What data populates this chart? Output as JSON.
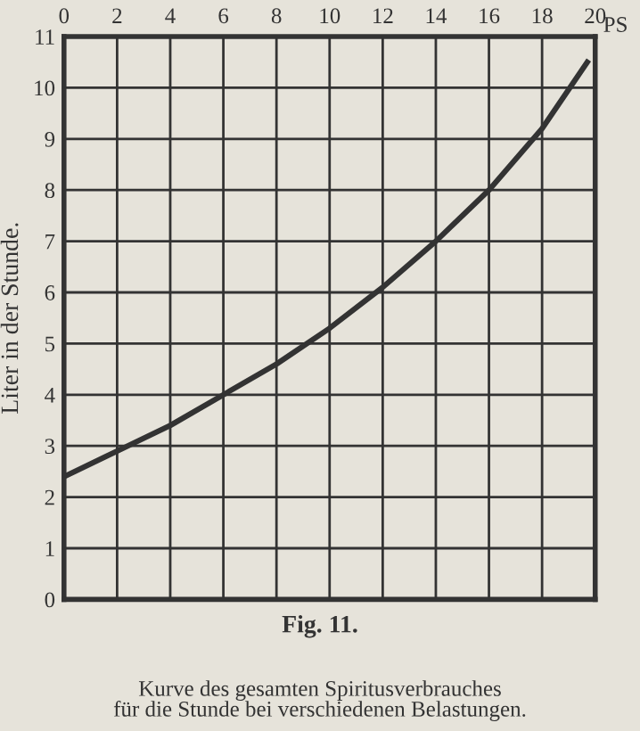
{
  "chart_data": {
    "type": "line",
    "title": "Fig. 11.",
    "subtitle": "Kurve des gesamten Spiritusverbrauches\nfür die Stunde bei verschiedenen Belastungen.",
    "xlabel": "PS",
    "ylabel": "Liter in der Stunde.",
    "x": [
      0,
      2,
      4,
      6,
      8,
      10,
      12,
      14,
      16,
      18,
      19.7
    ],
    "series": [
      {
        "color": "#333333",
        "values": [
          2.4,
          2.9,
          3.4,
          4.0,
          4.6,
          5.3,
          6.1,
          7.0,
          8.0,
          9.2,
          10.5
        ]
      }
    ],
    "xlim": [
      0,
      20
    ],
    "xticks": [
      0,
      2,
      4,
      6,
      8,
      10,
      12,
      14,
      16,
      18,
      20
    ],
    "ylim": [
      0,
      11
    ],
    "yticks": [
      0,
      1,
      2,
      3,
      4,
      5,
      6,
      7,
      8,
      9,
      10,
      11
    ],
    "grid": true,
    "marker": "none",
    "line_style": "solid"
  }
}
